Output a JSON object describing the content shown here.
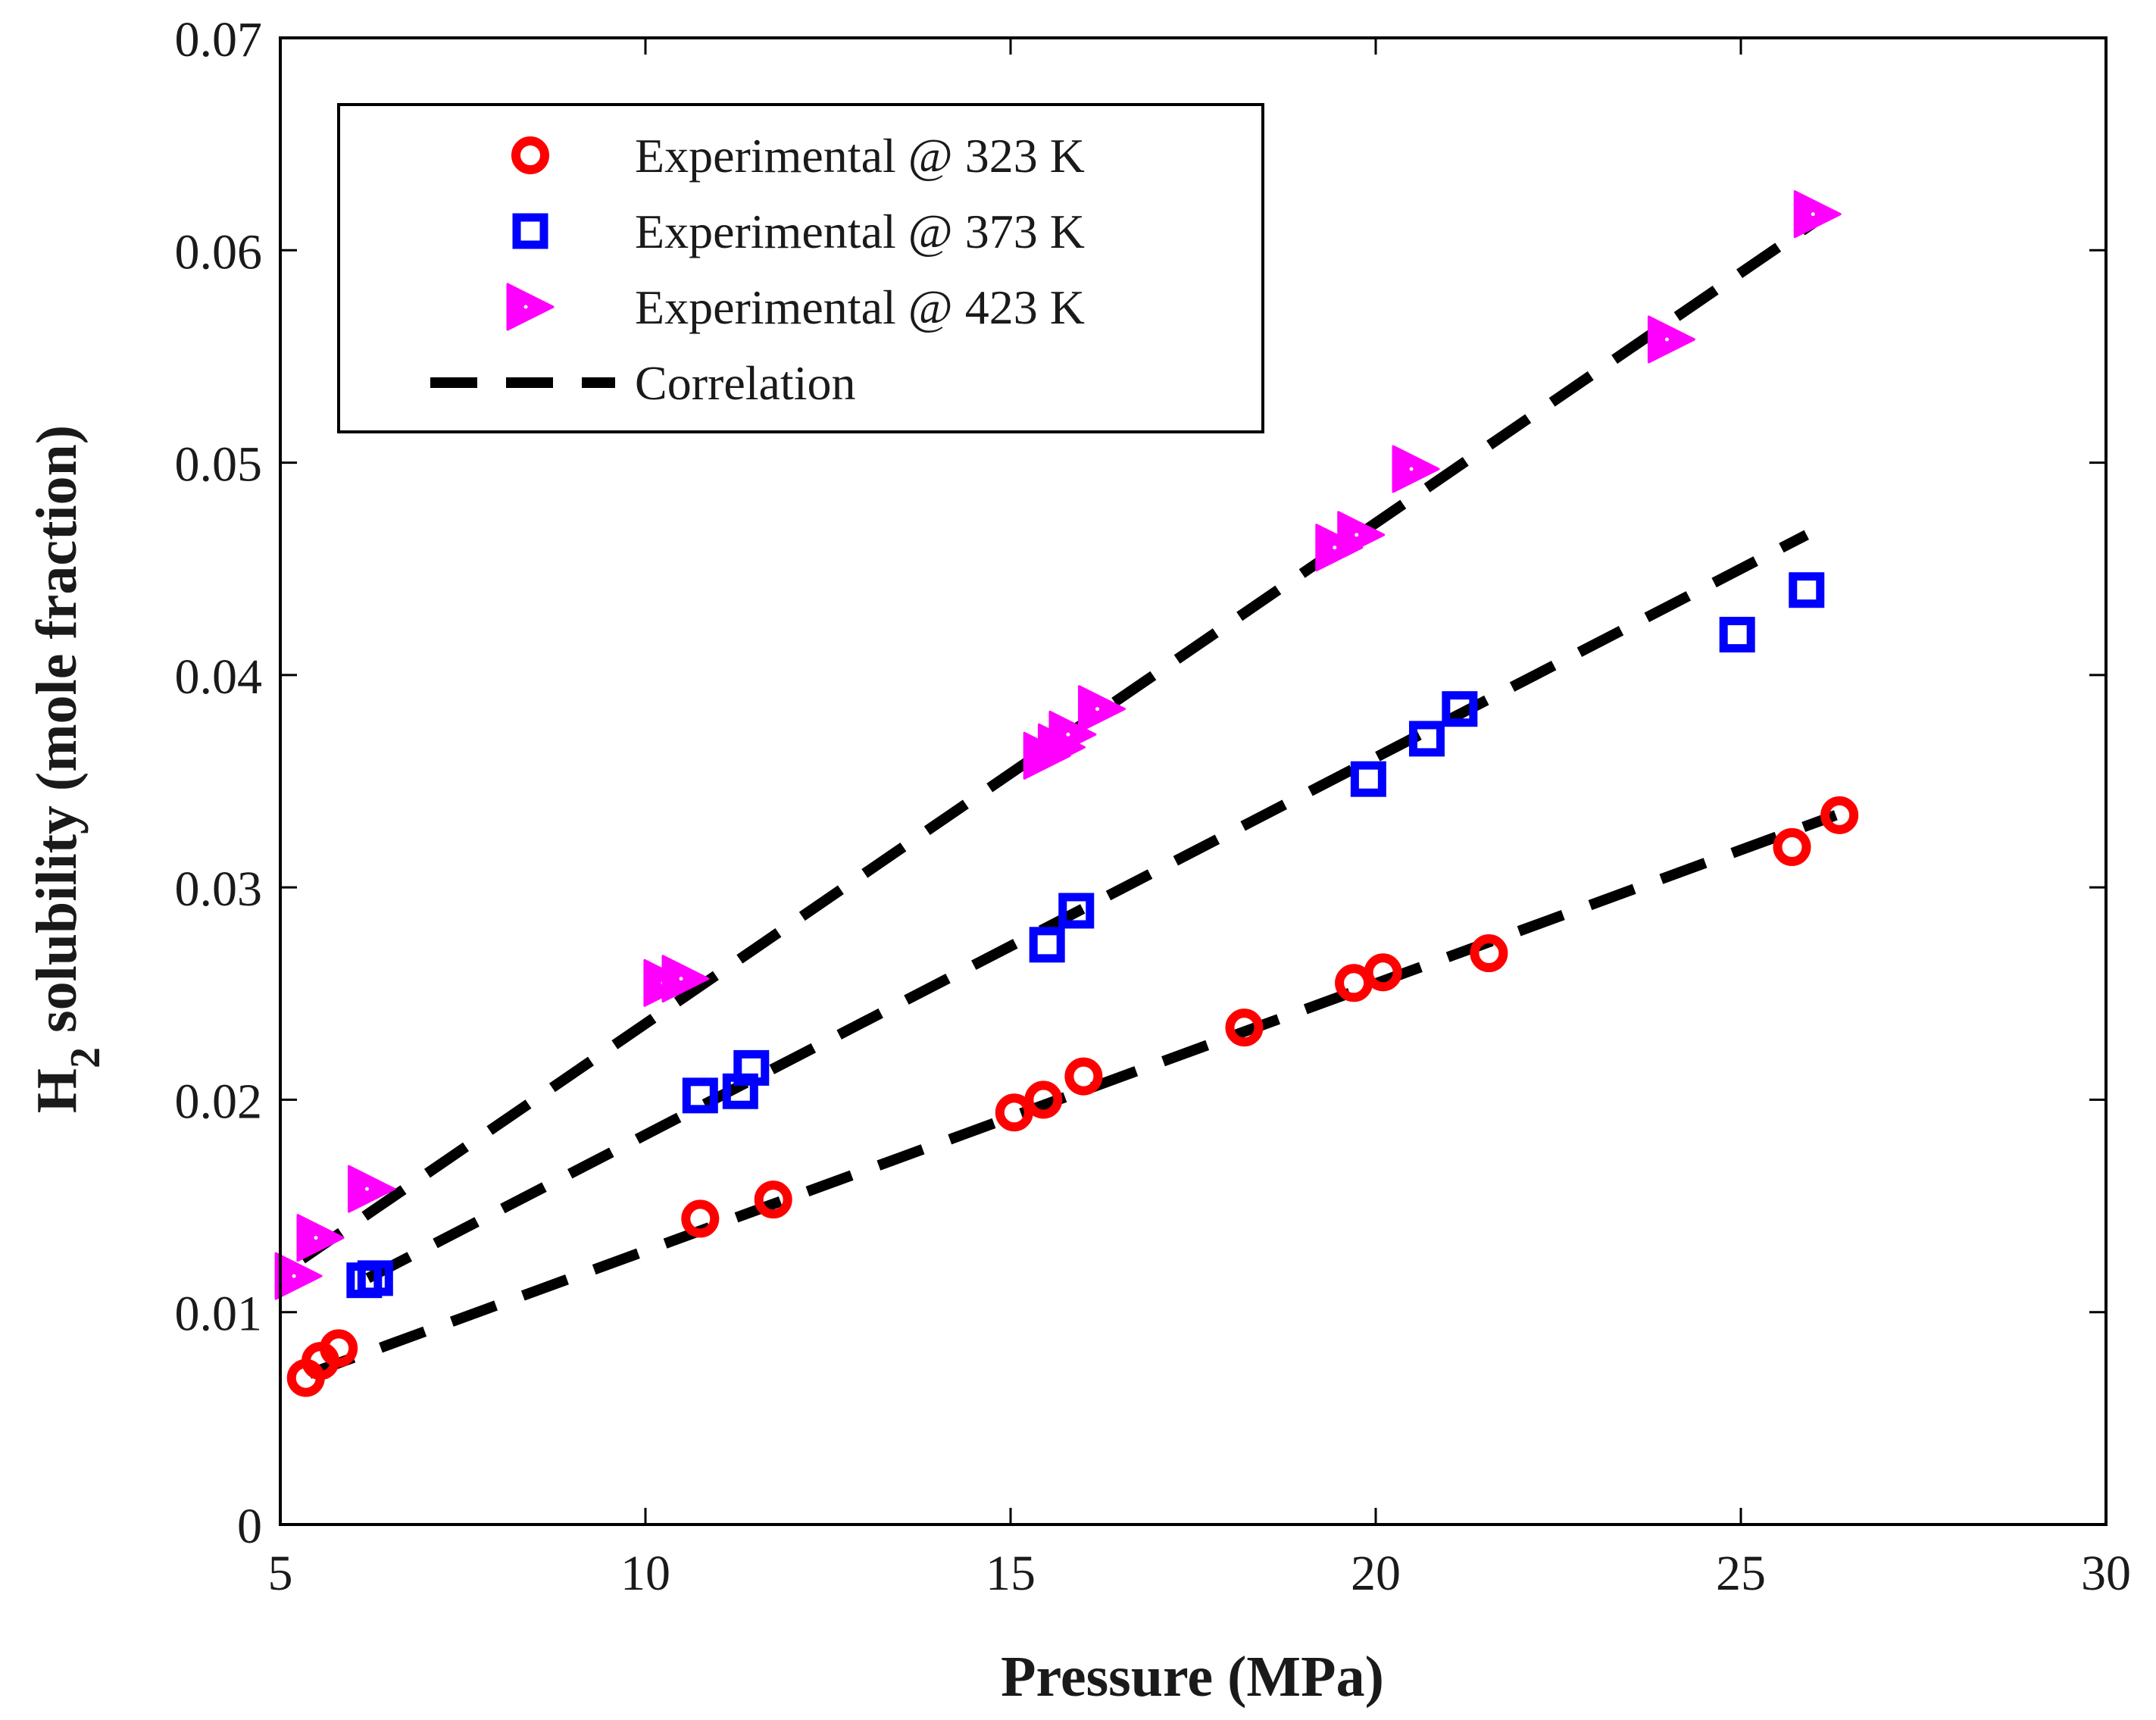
{
  "chart_data": {
    "type": "scatter",
    "title": "",
    "xlabel": "Pressure (MPa)",
    "ylabel": {
      "prefix": "H",
      "subscript": "2",
      "suffix": " solubility (mole fraction)"
    },
    "xlim": [
      5,
      30
    ],
    "ylim": [
      0,
      0.07
    ],
    "xticks": [
      5,
      10,
      15,
      20,
      25,
      30
    ],
    "yticks": [
      0,
      0.01,
      0.02,
      0.03,
      0.04,
      0.05,
      0.06,
      0.07
    ],
    "xtick_labels": [
      "5",
      "10",
      "15",
      "20",
      "25",
      "30"
    ],
    "ytick_labels": [
      "0",
      "0.01",
      "0.02",
      "0.03",
      "0.04",
      "0.05",
      "0.06",
      "0.07"
    ],
    "grid": false,
    "legend_position": "top-left",
    "series": [
      {
        "name": "Experimental @ 323 K",
        "marker": "circle",
        "color": "#ff0000",
        "x": [
          5.35,
          5.55,
          5.8,
          10.75,
          11.75,
          15.05,
          15.45,
          16.0,
          18.2,
          19.7,
          20.1,
          21.55,
          25.7,
          26.35
        ],
        "y": [
          0.0069,
          0.0077,
          0.0083,
          0.0144,
          0.0153,
          0.0194,
          0.02,
          0.0211,
          0.0234,
          0.0255,
          0.026,
          0.0269,
          0.0319,
          0.0334
        ]
      },
      {
        "name": "Experimental @ 373 K",
        "marker": "square",
        "color": "#0000ff",
        "x": [
          6.15,
          6.3,
          10.75,
          11.3,
          11.45,
          15.5,
          15.9,
          19.9,
          20.7,
          21.15,
          24.95,
          25.9
        ],
        "y": [
          0.0115,
          0.0116,
          0.0202,
          0.0204,
          0.0215,
          0.0273,
          0.0289,
          0.0351,
          0.037,
          0.0384,
          0.0419,
          0.044
        ]
      },
      {
        "name": "Experimental @ 423 K",
        "marker": "triangle-right",
        "color": "#ff00ff",
        "x": [
          5.25,
          5.55,
          6.25,
          10.3,
          10.55,
          15.5,
          15.7,
          15.85,
          16.25,
          19.5,
          19.8,
          20.55,
          24.05,
          26.05
        ],
        "y": [
          0.0117,
          0.0135,
          0.0158,
          0.0255,
          0.0257,
          0.0362,
          0.0366,
          0.0372,
          0.0384,
          0.046,
          0.0466,
          0.0497,
          0.0558,
          0.0617
        ]
      }
    ],
    "correlation": {
      "name": "Correlation",
      "style": "dashed",
      "color": "#000000",
      "lines": [
        {
          "x": [
            5.4,
            26.3
          ],
          "y": [
            0.0071,
            0.0334
          ]
        },
        {
          "x": [
            6.2,
            25.9
          ],
          "y": [
            0.0116,
            0.0466
          ]
        },
        {
          "x": [
            5.3,
            26.0
          ],
          "y": [
            0.0125,
            0.0613
          ]
        }
      ]
    }
  }
}
